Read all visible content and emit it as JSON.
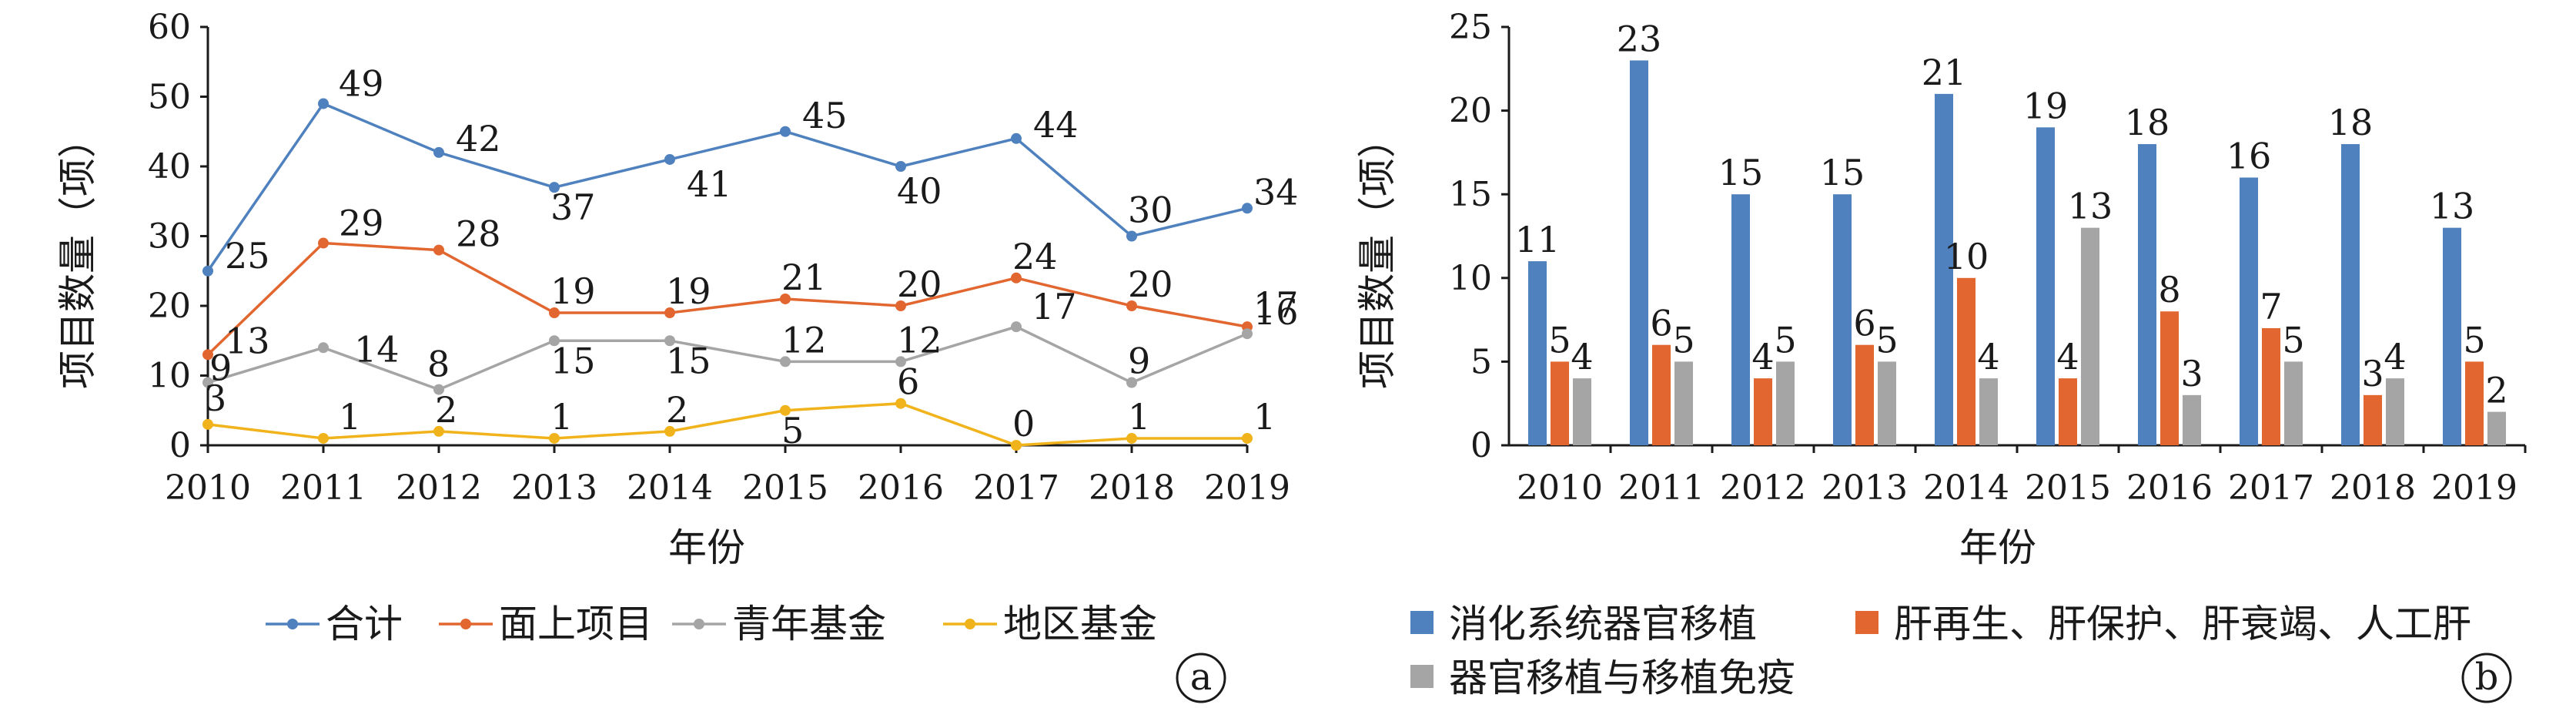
{
  "chart_data": [
    {
      "type": "line",
      "panel_label": "a",
      "categories": [
        "2010",
        "2011",
        "2012",
        "2013",
        "2014",
        "2015",
        "2016",
        "2017",
        "2018",
        "2019"
      ],
      "ylim": [
        0,
        60
      ],
      "yticks": [
        "0",
        "10",
        "20",
        "30",
        "40",
        "50",
        "60"
      ],
      "xlabel": "年份",
      "ylabel": "项目数量（项）",
      "grid": false,
      "legend_position": "bottom",
      "series": [
        {
          "name": "合计",
          "color": "#4e81bd",
          "values": [
            25,
            49,
            42,
            37,
            41,
            45,
            40,
            44,
            30,
            34
          ]
        },
        {
          "name": "面上项目",
          "color": "#e2662f",
          "values": [
            13,
            29,
            28,
            19,
            19,
            21,
            20,
            24,
            20,
            17
          ]
        },
        {
          "name": "青年基金",
          "color": "#a5a5a5",
          "values": [
            9,
            14,
            8,
            15,
            15,
            12,
            12,
            17,
            9,
            16
          ]
        },
        {
          "name": "地区基金",
          "color": "#f1b31b",
          "values": [
            3,
            1,
            2,
            1,
            2,
            5,
            6,
            0,
            1,
            1
          ]
        }
      ]
    },
    {
      "type": "bar",
      "panel_label": "b",
      "categories": [
        "2010",
        "2011",
        "2012",
        "2013",
        "2014",
        "2015",
        "2016",
        "2017",
        "2018",
        "2019"
      ],
      "ylim": [
        0,
        25
      ],
      "yticks": [
        "0",
        "5",
        "10",
        "15",
        "20",
        "25"
      ],
      "xlabel": "年份",
      "ylabel": "项目数量（项）",
      "grid": false,
      "legend_position": "bottom",
      "series": [
        {
          "name": "消化系统器官移植",
          "color": "#4e81bd",
          "values": [
            11,
            23,
            15,
            15,
            21,
            19,
            18,
            16,
            18,
            13
          ]
        },
        {
          "name": "肝再生、肝保护、肝衰竭、人工肝",
          "color": "#e2662f",
          "values": [
            5,
            6,
            4,
            6,
            10,
            4,
            8,
            7,
            3,
            5
          ]
        },
        {
          "name": "器官移植与移植免疫",
          "color": "#a5a5a5",
          "values": [
            4,
            5,
            5,
            5,
            4,
            13,
            3,
            5,
            4,
            2
          ]
        }
      ]
    }
  ]
}
